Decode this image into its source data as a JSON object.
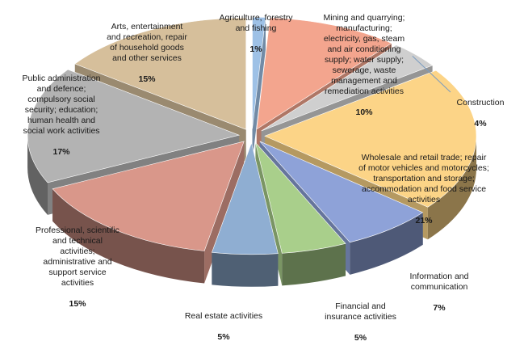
{
  "chart_data": {
    "type": "pie",
    "style": "exploded-3d",
    "title": "",
    "slices": [
      {
        "label": "Agriculture, forestry\nand fishing",
        "value_label": "1%",
        "value": 1,
        "color": "#9ec1e6"
      },
      {
        "label": "Mining and quarrying;\nmanufacturing;\nelectricity, gas, steam\nand air conditioning\nsupply; water supply;\nsewerage, waste\nmanagement and\nremediation activities",
        "value_label": "10%",
        "value": 10,
        "color": "#f3a58e"
      },
      {
        "label": "Construction",
        "value_label": "4%",
        "value": 4,
        "color": "#cfcfcf"
      },
      {
        "label": "Wholesale and retail trade; repair\nof motor vehicles and motorcycles;\ntransportation and storage;\naccommodation and food service\nactivities",
        "value_label": "21%",
        "value": 21,
        "color": "#fcd487"
      },
      {
        "label": "Information and\ncommunication",
        "value_label": "7%",
        "value": 7,
        "color": "#8ea2d8"
      },
      {
        "label": "Financial and\ninsurance activities",
        "value_label": "5%",
        "value": 5,
        "color": "#a9cf8b"
      },
      {
        "label": "Real estate activities",
        "value_label": "5%",
        "value": 5,
        "color": "#8faed2"
      },
      {
        "label": "Professional, scientific\nand technical\nactivities;\nadministrative and\nsupport service\nactivities",
        "value_label": "15%",
        "value": 15,
        "color": "#d9978a"
      },
      {
        "label": "Public administration\nand defence;\ncompulsory social\nsecurity; education;\nhuman health and\nsocial work activities",
        "value_label": "17%",
        "value": 17,
        "color": "#b3b3b3"
      },
      {
        "label": "Arts, entertainment\nand recreation, repair\nof household goods\nand other services",
        "value_label": "15%",
        "value": 15,
        "color": "#d6bf9b"
      }
    ]
  }
}
